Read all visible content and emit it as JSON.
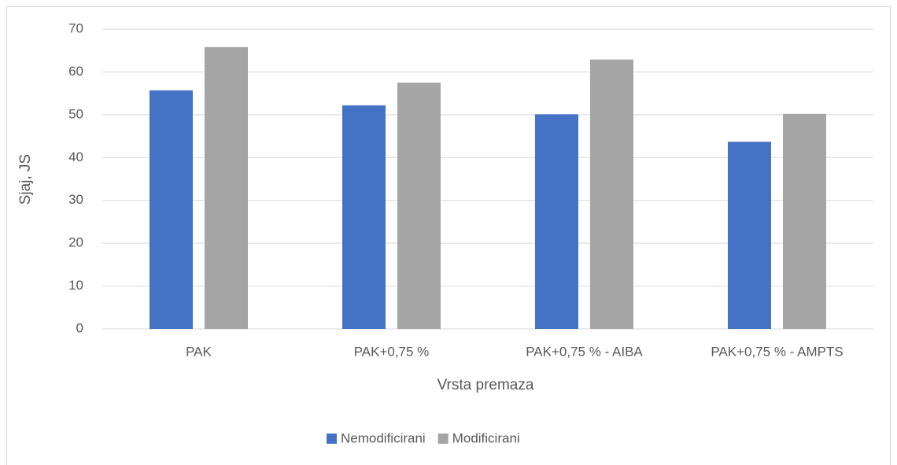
{
  "chart_data": {
    "type": "bar",
    "x_label": "Vrsta premaza",
    "y_label": "Sjaj, JS",
    "categories": [
      "PAK",
      "PAK+0,75 %",
      "PAK+0,75 % - AIBA",
      "PAK+0,75 % - AMPTS"
    ],
    "series": [
      {
        "name": "Nemodificirani",
        "color": "#4472c4",
        "values": [
          55.7,
          52.2,
          50.1,
          43.7
        ]
      },
      {
        "name": "Modificirani",
        "color": "#a5a5a5",
        "values": [
          65.8,
          57.5,
          62.9,
          50.2
        ]
      }
    ],
    "ylim": [
      0,
      70
    ],
    "yticks": [
      0,
      10,
      20,
      30,
      40,
      50,
      60,
      70
    ],
    "grid": true,
    "legend": "bottom"
  }
}
